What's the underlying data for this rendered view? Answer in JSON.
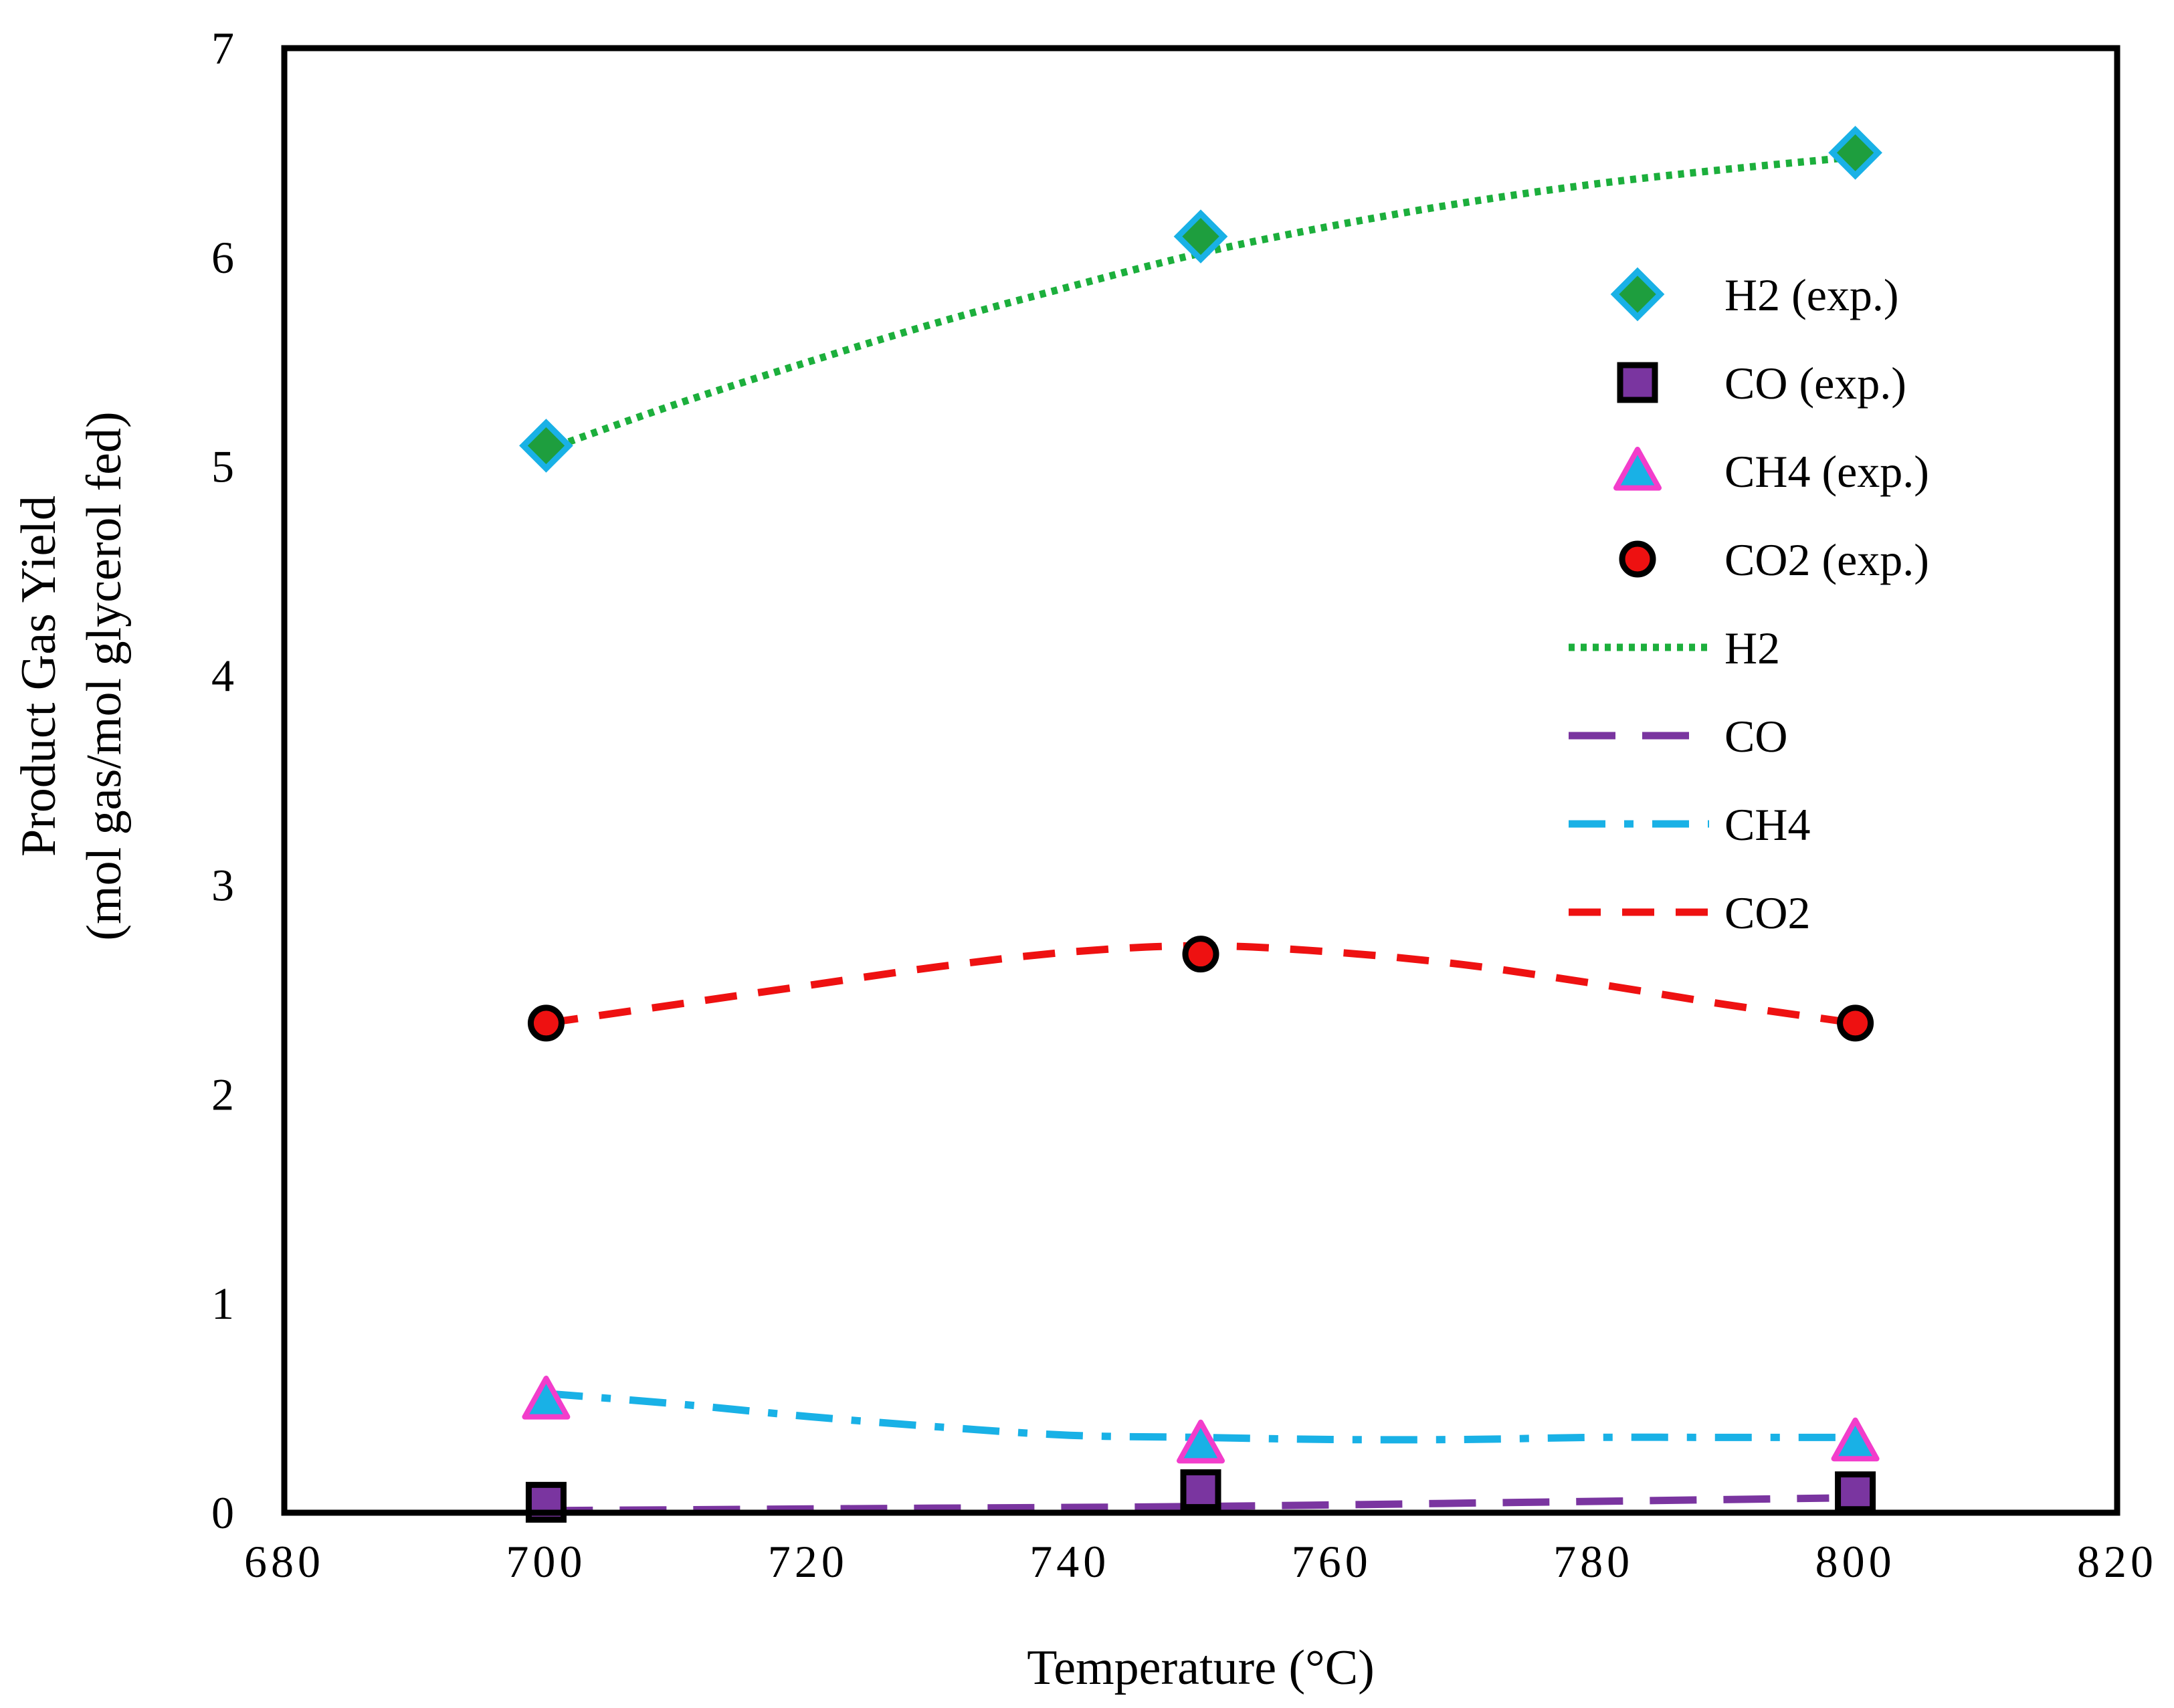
{
  "chart_data": {
    "type": "scatter",
    "xlabel": "Temperature (°C)",
    "ylabel_line1": "Product Gas Yield",
    "ylabel_line2": "(mol gas/mol glycerol fed)",
    "xlim": [
      680,
      820
    ],
    "ylim": [
      0,
      7
    ],
    "x_ticks": [
      680,
      700,
      720,
      740,
      760,
      780,
      800,
      820
    ],
    "y_ticks": [
      0,
      1,
      2,
      3,
      4,
      5,
      6,
      7
    ],
    "grid": false,
    "legend_position": "right",
    "experimental": [
      {
        "name": "H2 (exp.)",
        "marker": "diamond",
        "fill": "#1E9E3E",
        "stroke": "#19B1E6",
        "x": [
          700,
          750,
          800
        ],
        "y": [
          5.1,
          6.1,
          6.5
        ]
      },
      {
        "name": "CO (exp.)",
        "marker": "square",
        "fill": "#7A35A0",
        "stroke": "#000000",
        "x": [
          700,
          750,
          800
        ],
        "y": [
          0.05,
          0.11,
          0.1
        ]
      },
      {
        "name": "CH4 (exp.)",
        "marker": "triangle",
        "fill": "#19B1E6",
        "stroke": "#F23DCB",
        "x": [
          700,
          750,
          800
        ],
        "y": [
          0.54,
          0.33,
          0.34
        ]
      },
      {
        "name": "CO2 (exp.)",
        "marker": "circle",
        "fill": "#EE1111",
        "stroke": "#000000",
        "x": [
          700,
          750,
          800
        ],
        "y": [
          2.34,
          2.67,
          2.34
        ]
      }
    ],
    "model": [
      {
        "name": "H2",
        "style": "dotted",
        "color": "#1CAF3C",
        "x": [
          700,
          710,
          720,
          730,
          740,
          750,
          760,
          770,
          780,
          790,
          800
        ],
        "y": [
          5.08,
          5.3,
          5.5,
          5.69,
          5.86,
          6.02,
          6.15,
          6.26,
          6.35,
          6.42,
          6.48
        ]
      },
      {
        "name": "CO",
        "style": "longdash",
        "color": "#7A35A0",
        "x": [
          700,
          725,
          750,
          775,
          798
        ],
        "y": [
          0.01,
          0.02,
          0.03,
          0.05,
          0.07
        ]
      },
      {
        "name": "CH4",
        "style": "dashdot",
        "color": "#19B1E6",
        "x": [
          700,
          710,
          720,
          730,
          740,
          750,
          760,
          770,
          780,
          790,
          800
        ],
        "y": [
          0.57,
          0.52,
          0.46,
          0.41,
          0.37,
          0.36,
          0.35,
          0.35,
          0.36,
          0.36,
          0.36
        ]
      },
      {
        "name": "CO2",
        "style": "dashed",
        "color": "#EE1111",
        "x": [
          700,
          710,
          720,
          730,
          740,
          750,
          760,
          770,
          780,
          790,
          800
        ],
        "y": [
          2.34,
          2.43,
          2.52,
          2.61,
          2.68,
          2.71,
          2.68,
          2.62,
          2.53,
          2.43,
          2.34
        ]
      }
    ]
  }
}
